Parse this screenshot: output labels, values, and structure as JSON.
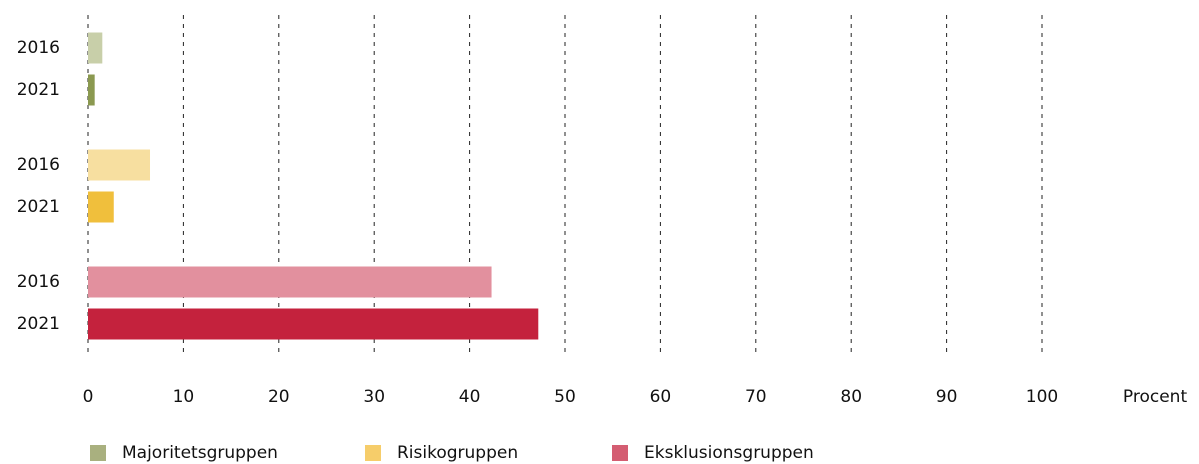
{
  "chart_data": {
    "type": "bar",
    "orientation": "horizontal",
    "categories": [
      "2016",
      "2021"
    ],
    "series": [
      {
        "name": "Majoritetsgruppen",
        "color": "#a9b07f",
        "colors": [
          "#c8cfa9",
          "#8b9950"
        ],
        "values": [
          1.5,
          0.7
        ]
      },
      {
        "name": "Risikogruppen",
        "color": "#f6cd6a",
        "colors": [
          "#f7dfa0",
          "#f0bf3c"
        ],
        "values": [
          6.5,
          2.7
        ]
      },
      {
        "name": "Eksklusionsgruppen",
        "color": "#d45d72",
        "colors": [
          "#e2909e",
          "#c4223d"
        ],
        "values": [
          42.3,
          47.2
        ]
      }
    ],
    "xlabel": "Procent",
    "xlim": [
      0,
      100
    ],
    "xticks": [
      0,
      10,
      20,
      30,
      40,
      50,
      60,
      70,
      80,
      90,
      100
    ],
    "grid": true,
    "legend": "bottom"
  }
}
